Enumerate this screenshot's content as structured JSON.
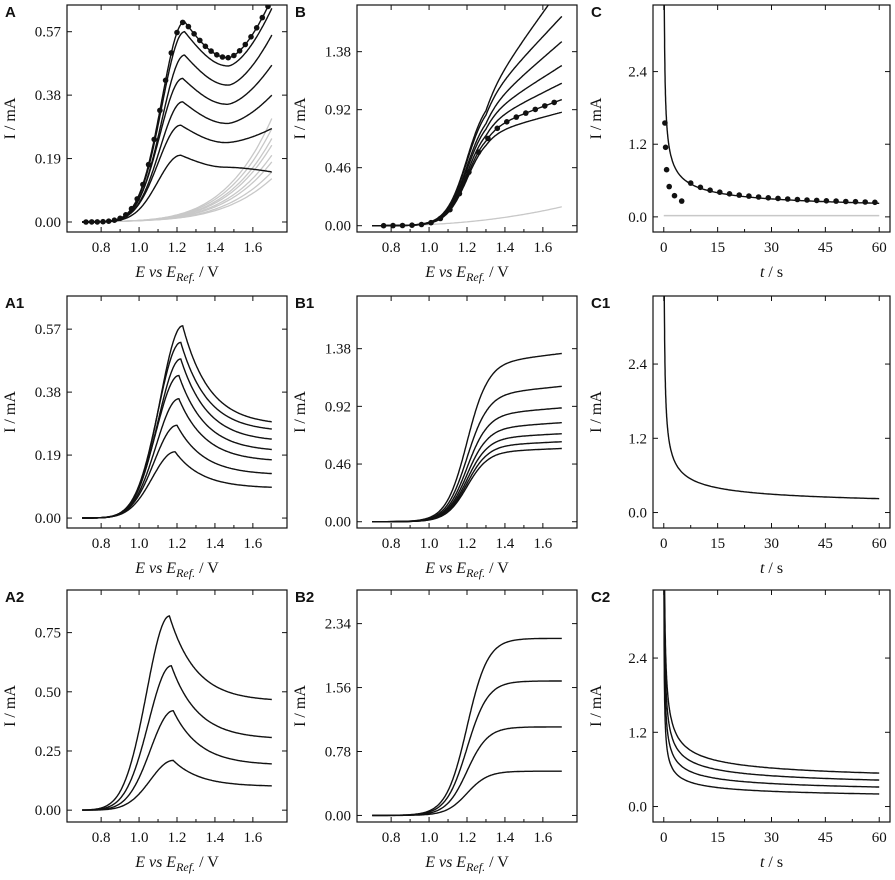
{
  "figure": {
    "panel_count": 9
  },
  "chart_data": [
    {
      "id": "A",
      "panel": "A",
      "type": "line",
      "kind": "cv",
      "xlabel": {
        "italic": "E vs E",
        "sub": "Ref.",
        "unit": " / V"
      },
      "ylabel": "I / mA",
      "xlim": [
        0.62,
        1.78
      ],
      "ylim": [
        -0.03,
        0.65
      ],
      "xticks": [
        "0.8",
        "1.0",
        "1.2",
        "1.4",
        "1.6"
      ],
      "yticks": [
        "0.00",
        "0.19",
        "0.38",
        "0.57"
      ],
      "gray_series": {
        "count": 8,
        "end_values": [
          0.12,
          0.14,
          0.17,
          0.19,
          0.22,
          0.24,
          0.27,
          0.3
        ],
        "color": "#c8c8c8"
      },
      "series": [
        {
          "name": "curve 1",
          "peak": 0.2,
          "peak_x": 1.22,
          "end": 0.15
        },
        {
          "name": "curve 2",
          "peak": 0.29,
          "peak_x": 1.22,
          "end": 0.28
        },
        {
          "name": "curve 3",
          "peak": 0.36,
          "peak_x": 1.23,
          "end": 0.38
        },
        {
          "name": "curve 4",
          "peak": 0.43,
          "peak_x": 1.23,
          "end": 0.47
        },
        {
          "name": "curve 5",
          "peak": 0.5,
          "peak_x": 1.24,
          "end": 0.56
        },
        {
          "name": "curve 6",
          "peak": 0.57,
          "peak_x": 1.24,
          "end": 0.64
        },
        {
          "name": "curve 7",
          "peak": 0.6,
          "peak_x": 1.24,
          "end": 0.67
        }
      ],
      "markers": {
        "name": "experimental points",
        "follows_series": 6,
        "x_from": 0.72,
        "x_to": 1.68,
        "step": 0.03
      }
    },
    {
      "id": "B",
      "panel": "B",
      "type": "line",
      "kind": "sig",
      "xlabel": {
        "italic": "E vs E",
        "sub": "Ref.",
        "unit": " / V"
      },
      "ylabel": "I / mA",
      "xlim": [
        0.62,
        1.78
      ],
      "ylim": [
        -0.05,
        1.75
      ],
      "xticks": [
        "0.8",
        "1.0",
        "1.2",
        "1.4",
        "1.6"
      ],
      "yticks": [
        "0.00",
        "0.46",
        "0.92",
        "1.38"
      ],
      "gray_series": {
        "count": 1,
        "end_values": [
          0.15
        ],
        "color": "#c8c8c8"
      },
      "series": [
        {
          "name": "curve 1",
          "plateau": 0.74,
          "slope": 0.4
        },
        {
          "name": "curve 2",
          "plateau": 0.78,
          "slope": 0.55
        },
        {
          "name": "curve 3",
          "plateau": 0.83,
          "slope": 0.75
        },
        {
          "name": "curve 4",
          "plateau": 0.89,
          "slope": 0.95
        },
        {
          "name": "curve 5",
          "plateau": 0.94,
          "slope": 1.3
        },
        {
          "name": "curve 6",
          "plateau": 1.02,
          "slope": 1.6
        },
        {
          "name": "curve 7",
          "plateau": 1.06,
          "slope": 2.1
        }
      ],
      "markers": {
        "name": "experimental points",
        "follows_series": 1,
        "x_from": 0.76,
        "x_to": 1.68,
        "step": 0.05
      }
    },
    {
      "id": "C",
      "panel": "C",
      "type": "line",
      "kind": "ca",
      "xlabel": {
        "italic": "t",
        "sub": "",
        "unit": " / s"
      },
      "ylabel": "I / mA",
      "xlim": [
        -3,
        63
      ],
      "ylim": [
        -0.25,
        3.5
      ],
      "xticks": [
        "0",
        "15",
        "30",
        "45",
        "60"
      ],
      "yticks": [
        "0.0",
        "1.2",
        "2.4"
      ],
      "gray_series": {
        "count": 1,
        "value": 0.02,
        "color": "#c8c8c8"
      },
      "series": [
        {
          "name": "fit",
          "a": 2.7,
          "b": 0.05
        }
      ],
      "markers": {
        "name": "experimental points",
        "points": [
          [
            0.3,
            1.55
          ],
          [
            0.5,
            1.15
          ],
          [
            0.8,
            0.78
          ],
          [
            1.5,
            0.5
          ],
          [
            3,
            0.35
          ],
          [
            5,
            0.26
          ]
        ],
        "x_from": 7.5,
        "x_to": 59,
        "step": 2.7
      }
    },
    {
      "id": "A1",
      "panel": "A1",
      "type": "line",
      "kind": "cv2",
      "xlabel": {
        "italic": "E vs E",
        "sub": "Ref.",
        "unit": " / V"
      },
      "ylabel": "I / mA",
      "xlim": [
        0.62,
        1.78
      ],
      "ylim": [
        -0.03,
        0.67
      ],
      "xticks": [
        "0.8",
        "1.0",
        "1.2",
        "1.4",
        "1.6"
      ],
      "yticks": [
        "0.00",
        "0.19",
        "0.38",
        "0.57"
      ],
      "series": [
        {
          "name": "curve 1",
          "peak": 0.2,
          "peak_x": 1.19,
          "end": 0.09
        },
        {
          "name": "curve 2",
          "peak": 0.28,
          "peak_x": 1.2,
          "end": 0.13
        },
        {
          "name": "curve 3",
          "peak": 0.36,
          "peak_x": 1.21,
          "end": 0.17
        },
        {
          "name": "curve 4",
          "peak": 0.43,
          "peak_x": 1.21,
          "end": 0.2
        },
        {
          "name": "curve 5",
          "peak": 0.48,
          "peak_x": 1.22,
          "end": 0.23
        },
        {
          "name": "curve 6",
          "peak": 0.53,
          "peak_x": 1.22,
          "end": 0.26
        },
        {
          "name": "curve 7",
          "peak": 0.58,
          "peak_x": 1.23,
          "end": 0.28
        }
      ]
    },
    {
      "id": "B1",
      "panel": "B1",
      "type": "line",
      "kind": "sig",
      "xlabel": {
        "italic": "E vs E",
        "sub": "Ref.",
        "unit": " / V"
      },
      "ylabel": "I / mA",
      "xlim": [
        0.62,
        1.78
      ],
      "ylim": [
        -0.05,
        1.8
      ],
      "xticks": [
        "0.8",
        "1.0",
        "1.2",
        "1.4",
        "1.6"
      ],
      "yticks": [
        "0.00",
        "0.46",
        "0.92",
        "1.38"
      ],
      "series": [
        {
          "name": "curve 1",
          "plateau": 0.56,
          "slope": 0.06
        },
        {
          "name": "curve 2",
          "plateau": 0.61,
          "slope": 0.07
        },
        {
          "name": "curve 3",
          "plateau": 0.67,
          "slope": 0.08
        },
        {
          "name": "curve 4",
          "plateau": 0.75,
          "slope": 0.1
        },
        {
          "name": "curve 5",
          "plateau": 0.86,
          "slope": 0.12
        },
        {
          "name": "curve 6",
          "plateau": 1.02,
          "slope": 0.15
        },
        {
          "name": "curve 7",
          "plateau": 1.27,
          "slope": 0.18
        }
      ]
    },
    {
      "id": "C1",
      "panel": "C1",
      "type": "line",
      "kind": "ca",
      "xlabel": {
        "italic": "t",
        "sub": "",
        "unit": " / s"
      },
      "ylabel": "I / mA",
      "xlim": [
        -3,
        63
      ],
      "ylim": [
        -0.25,
        3.5
      ],
      "xticks": [
        "0",
        "15",
        "30",
        "45",
        "60"
      ],
      "yticks": [
        "0.0",
        "1.2",
        "2.4"
      ],
      "series": [
        {
          "name": "simulated",
          "a": 2.7,
          "b": 0.05
        }
      ]
    },
    {
      "id": "A2",
      "panel": "A2",
      "type": "line",
      "kind": "cv2",
      "xlabel": {
        "italic": "E vs E",
        "sub": "Ref.",
        "unit": " / V"
      },
      "ylabel": "I / mA",
      "xlim": [
        0.62,
        1.78
      ],
      "ylim": [
        -0.05,
        0.93
      ],
      "xticks": [
        "0.8",
        "1.0",
        "1.2",
        "1.4",
        "1.6"
      ],
      "yticks": [
        "0.00",
        "0.25",
        "0.50",
        "0.75"
      ],
      "series": [
        {
          "name": "curve 1",
          "peak": 0.21,
          "peak_x": 1.18,
          "end": 0.1
        },
        {
          "name": "curve 2",
          "peak": 0.42,
          "peak_x": 1.18,
          "end": 0.19
        },
        {
          "name": "curve 3",
          "peak": 0.61,
          "peak_x": 1.17,
          "end": 0.3
        },
        {
          "name": "curve 4",
          "peak": 0.82,
          "peak_x": 1.16,
          "end": 0.46
        }
      ]
    },
    {
      "id": "B2",
      "panel": "B2",
      "type": "line",
      "kind": "sig",
      "xlabel": {
        "italic": "E vs E",
        "sub": "Ref.",
        "unit": " / V"
      },
      "ylabel": "I / mA",
      "xlim": [
        0.62,
        1.78
      ],
      "ylim": [
        -0.08,
        2.75
      ],
      "xticks": [
        "0.8",
        "1.0",
        "1.2",
        "1.4",
        "1.6"
      ],
      "yticks": [
        "0.00",
        "0.78",
        "1.56",
        "2.34"
      ],
      "series": [
        {
          "name": "curve 1",
          "plateau": 0.54,
          "slope": 0.0
        },
        {
          "name": "curve 2",
          "plateau": 1.08,
          "slope": 0.0
        },
        {
          "name": "curve 3",
          "plateau": 1.64,
          "slope": 0.0
        },
        {
          "name": "curve 4",
          "plateau": 2.16,
          "slope": 0.0
        }
      ]
    },
    {
      "id": "C2",
      "panel": "C2",
      "type": "line",
      "kind": "ca",
      "xlabel": {
        "italic": "t",
        "sub": "",
        "unit": " / s"
      },
      "ylabel": "I / mA",
      "xlim": [
        -3,
        63
      ],
      "ylim": [
        -0.25,
        3.5
      ],
      "xticks": [
        "0",
        "15",
        "30",
        "45",
        "60"
      ],
      "yticks": [
        "0.0",
        "1.2",
        "2.4"
      ],
      "series": [
        {
          "name": "curve 1",
          "a": 1.6,
          "b": 0.1
        },
        {
          "name": "curve 2",
          "a": 2.1,
          "b": 0.18
        },
        {
          "name": "curve 3",
          "a": 2.6,
          "b": 0.26
        },
        {
          "name": "curve 4",
          "a": 3.1,
          "b": 0.34
        }
      ]
    }
  ]
}
